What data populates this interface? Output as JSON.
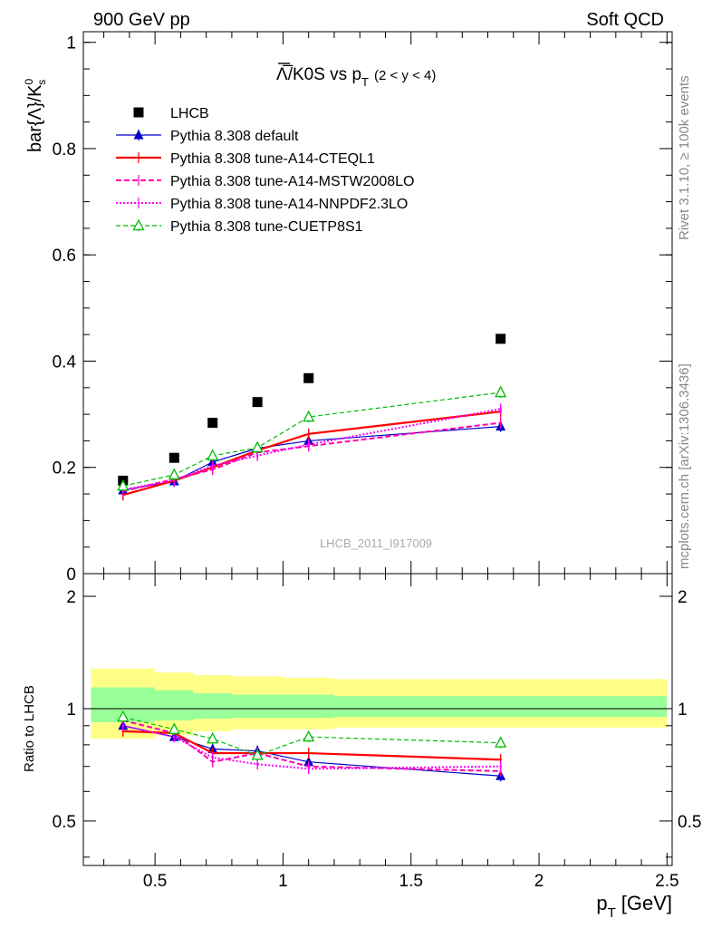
{
  "header": {
    "left": "900 GeV pp",
    "right": "Soft QCD"
  },
  "side_text": {
    "rivet": "Rivet 3.1.10, ≥ 100k events",
    "source": "mcplots.cern.ch [arXiv:1306.3436]"
  },
  "colors": {
    "data": "#000000",
    "default": "#0000cc",
    "cteql1": "#ff0000",
    "mstw": "#ff00aa",
    "nnpdf": "#ff00ff",
    "cuetp": "#00bb00",
    "band_outer": "#ffff88",
    "band_inner": "#99ff99"
  },
  "chart_data": [
    {
      "type": "scatter",
      "title": "Λ̅/K0S vs pT (2 < y < 4)",
      "title_parts": {
        "main": "Λ̅/K0S vs p",
        "sub": "T",
        "range": "(2 < y < 4)"
      },
      "ylabel": "bar{Λ}/K⁰s",
      "ylabel_parts": {
        "main": "bar{Λ}/K",
        "sup": "0",
        "sub": "s"
      },
      "watermark": "LHCB_2011_I917009",
      "xlim": [
        0.22,
        2.52
      ],
      "ylim": [
        0,
        1.02
      ],
      "yticks": [
        "0",
        "0.2",
        "0.4",
        "0.6",
        "0.8",
        "1"
      ],
      "x": [
        0.375,
        0.575,
        0.725,
        0.9,
        1.1,
        1.85
      ],
      "series": [
        {
          "key": "data",
          "name": "LHCB",
          "values": [
            0.175,
            0.218,
            0.284,
            0.323,
            0.368,
            0.442
          ]
        },
        {
          "key": "default",
          "name": "Pythia 8.308 default",
          "values": [
            0.157,
            0.174,
            0.21,
            0.236,
            0.25,
            0.277
          ]
        },
        {
          "key": "cteql1",
          "name": "Pythia 8.308 tune-A14-CTEQL1",
          "values": [
            0.148,
            0.175,
            0.2,
            0.232,
            0.263,
            0.305
          ]
        },
        {
          "key": "mstw",
          "name": "Pythia 8.308 tune-A14-MSTW2008LO",
          "values": [
            0.155,
            0.178,
            0.196,
            0.228,
            0.24,
            0.284
          ]
        },
        {
          "key": "nnpdf",
          "name": "Pythia 8.308 tune-A14-NNPDF2.3LO",
          "values": [
            0.158,
            0.176,
            0.203,
            0.222,
            0.243,
            0.31
          ]
        },
        {
          "key": "cuetp",
          "name": "Pythia 8.308 tune-CUETP8S1",
          "values": [
            0.165,
            0.186,
            0.222,
            0.237,
            0.295,
            0.341
          ]
        }
      ]
    },
    {
      "type": "scatter",
      "ylabel": "Ratio to LHCB",
      "xlabel": "pT [GeV]",
      "xlabel_parts": {
        "main": "p",
        "sub": "T",
        "unit": "[GeV]"
      },
      "xlim": [
        0.22,
        2.52
      ],
      "ylim": [
        0.38,
        2.3
      ],
      "yticks": [
        "0.5",
        "1",
        "2"
      ],
      "xticks": [
        "0.5",
        "1",
        "1.5",
        "2",
        "2.5"
      ],
      "band_edges": [
        0.25,
        0.5,
        0.65,
        0.8,
        1.0,
        1.2,
        2.5
      ],
      "band_outer": [
        [
          0.83,
          1.28
        ],
        [
          0.85,
          1.25
        ],
        [
          0.87,
          1.23
        ],
        [
          0.88,
          1.22
        ],
        [
          0.88,
          1.21
        ],
        [
          0.89,
          1.2
        ]
      ],
      "band_inner": [
        [
          0.92,
          1.14
        ],
        [
          0.93,
          1.12
        ],
        [
          0.94,
          1.1
        ],
        [
          0.945,
          1.09
        ],
        [
          0.945,
          1.09
        ],
        [
          0.95,
          1.08
        ]
      ],
      "x": [
        0.375,
        0.575,
        0.725,
        0.9,
        1.1,
        1.85
      ],
      "series": [
        {
          "key": "default",
          "values": [
            0.9,
            0.84,
            0.78,
            0.77,
            0.72,
            0.66
          ]
        },
        {
          "key": "cteql1",
          "values": [
            0.87,
            0.86,
            0.76,
            0.76,
            0.76,
            0.73
          ]
        },
        {
          "key": "mstw",
          "values": [
            0.93,
            0.86,
            0.72,
            0.76,
            0.7,
            0.68
          ]
        },
        {
          "key": "nnpdf",
          "values": [
            0.9,
            0.84,
            0.74,
            0.71,
            0.69,
            0.7
          ]
        },
        {
          "key": "cuetp",
          "values": [
            0.95,
            0.88,
            0.83,
            0.75,
            0.84,
            0.81
          ]
        }
      ]
    }
  ]
}
